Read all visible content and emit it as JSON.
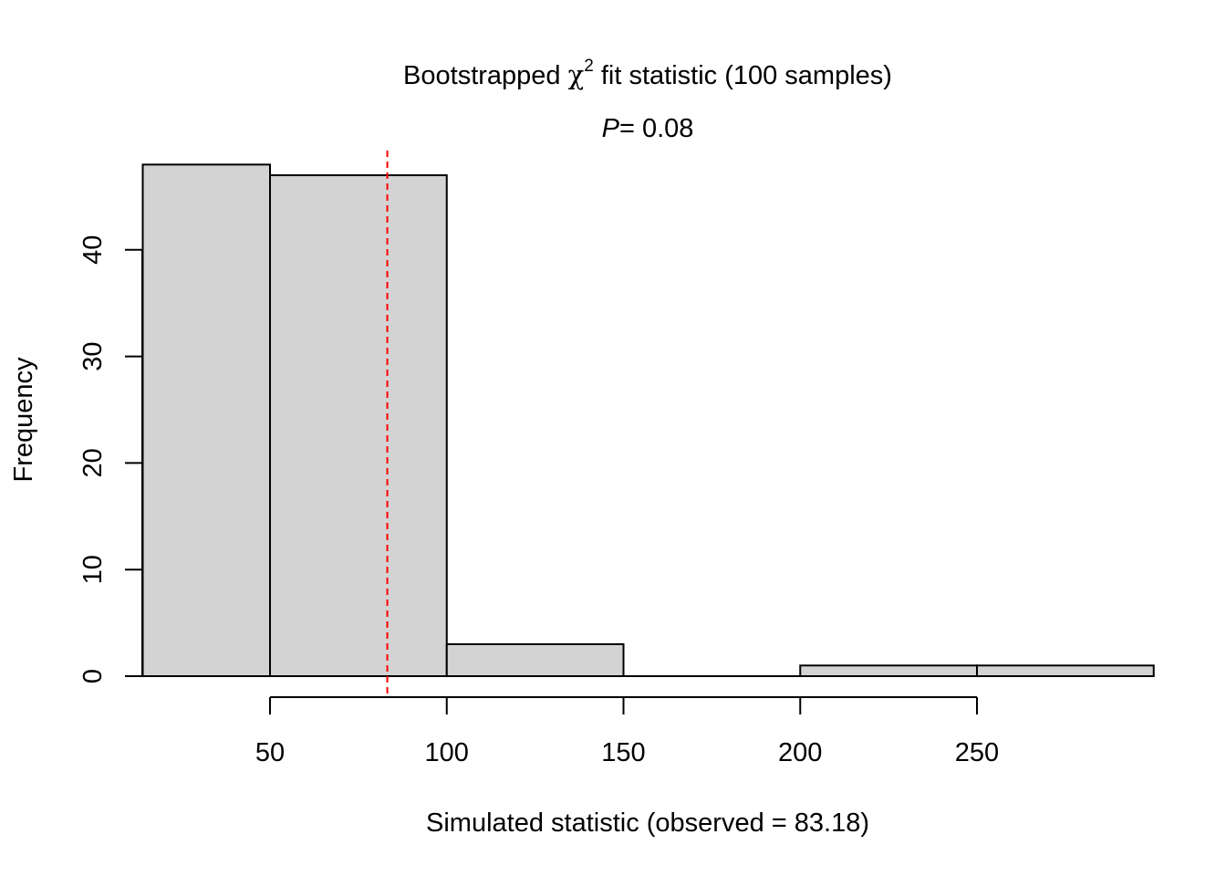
{
  "chart_data": {
    "type": "bar",
    "title": "Bootstrapped χ² fit statistic (100 samples)",
    "title_parts": {
      "before": "Bootstrapped ",
      "chi": "χ",
      "superscript": "2",
      "after": " fit statistic (100 samples)"
    },
    "subtitle": "P= 0.08",
    "subtitle_parts": {
      "italic": "P",
      "rest": "= 0.08"
    },
    "xlabel": "Simulated statistic (observed = 83.18)",
    "ylabel": "Frequency",
    "bins": [
      {
        "from": 14,
        "to": 50,
        "count": 48
      },
      {
        "from": 50,
        "to": 100,
        "count": 47
      },
      {
        "from": 100,
        "to": 150,
        "count": 3
      },
      {
        "from": 150,
        "to": 200,
        "count": 0
      },
      {
        "from": 200,
        "to": 250,
        "count": 1
      },
      {
        "from": 250,
        "to": 300,
        "count": 1
      }
    ],
    "xlim": [
      14,
      300
    ],
    "ylim": [
      0,
      48
    ],
    "x_ticks": [
      50,
      100,
      150,
      200,
      250
    ],
    "x_tick_labels": [
      "50",
      "100",
      "150",
      "200",
      "250"
    ],
    "y_ticks": [
      0,
      10,
      20,
      30,
      40
    ],
    "y_tick_labels": [
      "0",
      "10",
      "20",
      "30",
      "40"
    ],
    "observed": 83.18,
    "grid": false,
    "legend": "none",
    "colors": {
      "bar_fill": "#d3d3d3",
      "bar_stroke": "#000000",
      "observed_line": "#ff0000"
    }
  }
}
